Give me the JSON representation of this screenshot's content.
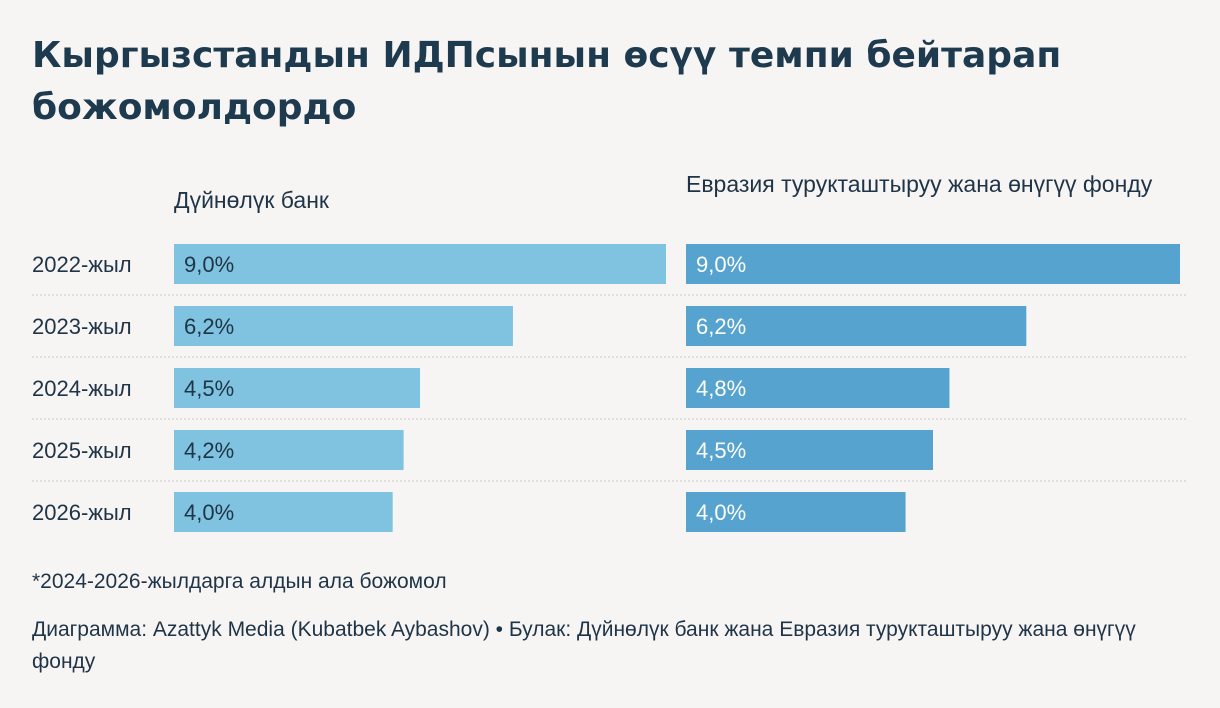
{
  "title": "Кыргызстандын ИДПсынын өсүү темпи бейтарап божомолдордо",
  "chart_data": {
    "type": "bar",
    "orientation": "horizontal",
    "title": "Кыргызстандын ИДПсынын өсүү темпи бейтарап божомолдордо",
    "categories": [
      "2022-жыл",
      "2023-жыл",
      "2024-жыл",
      "2025-жыл",
      "2026-жыл"
    ],
    "xlim": [
      0,
      9.0
    ],
    "series": [
      {
        "name": "Дүйнөлүк банк",
        "values": [
          9.0,
          6.2,
          4.5,
          4.2,
          4.0
        ],
        "labels": [
          "9,0%",
          "6,2%",
          "4,5%",
          "4,2%",
          "4,0%"
        ],
        "color": "#7fc3e0"
      },
      {
        "name": "Евразия турукташтыруу жана өнүгүү фонду",
        "values": [
          9.0,
          6.2,
          4.8,
          4.5,
          4.0
        ],
        "labels": [
          "9,0%",
          "6,2%",
          "4,8%",
          "4,5%",
          "4,0%"
        ],
        "color": "#56a3d0"
      }
    ],
    "gridline_color": "#c9c9c9"
  },
  "footnote": "*2024-2026-жылдарга алдын ала божомол",
  "credit": "Диаграмма: Azattyk Media (Kubatbek Aybashov) • Булак: Дүйнөлүк банк жана Евразия турукташтыруу жана өнүгүү фонду"
}
